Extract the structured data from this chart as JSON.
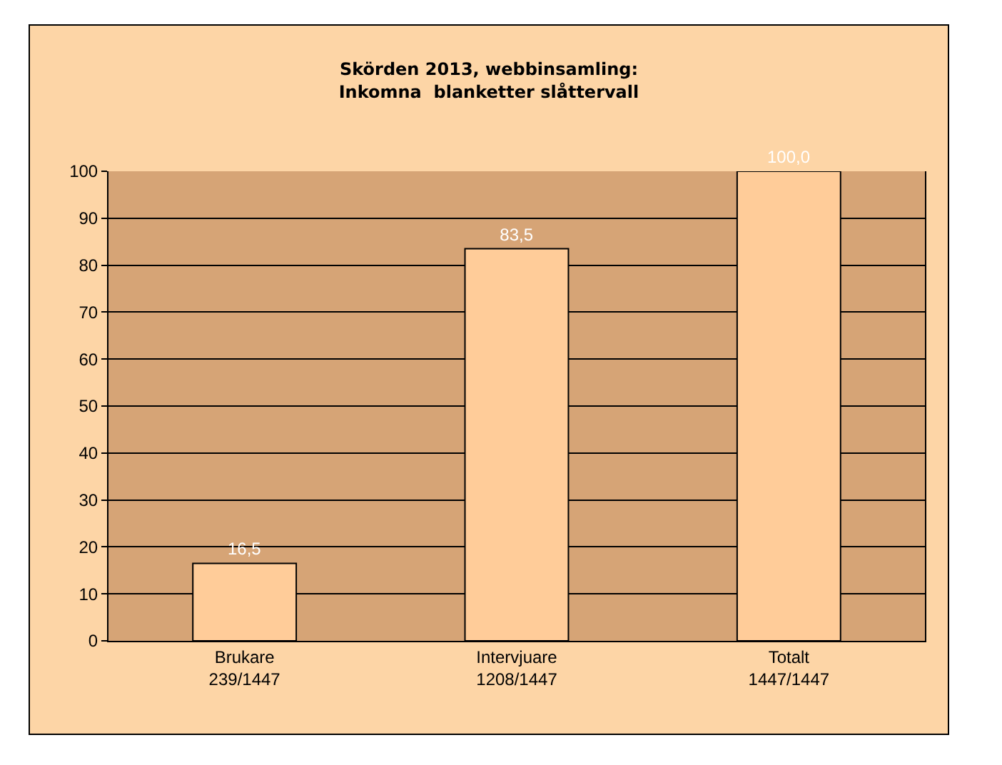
{
  "chart_data": {
    "type": "bar",
    "title": "Skörden 2013, webbinsamling:\nInkomna  blanketter slåttervall",
    "categories": [
      "Brukare\n239/1447",
      "Intervjuare\n1208/1447",
      "Totalt\n1447/1447"
    ],
    "values": [
      16.5,
      83.5,
      100.0
    ],
    "value_labels": [
      "16,5",
      "83,5",
      "100,0"
    ],
    "color": "#ffcc99",
    "ylim": [
      0,
      100
    ],
    "yticks": [
      0,
      10,
      20,
      30,
      40,
      50,
      60,
      70,
      80,
      90,
      100
    ],
    "grid": "y",
    "legend": false
  }
}
